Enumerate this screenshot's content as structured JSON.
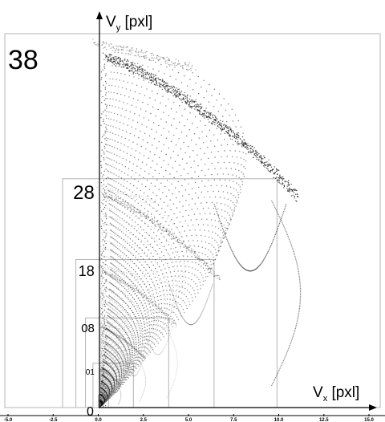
{
  "chart_data": {
    "type": "scatter",
    "title": "",
    "xlabel": {
      "main": "V",
      "sub": "x",
      "unit": " [pxl]"
    },
    "ylabel": {
      "main": "V",
      "sub": "y",
      "unit": " [pxl]"
    },
    "xlim": [
      -5.0,
      15.0
    ],
    "x_ticks": [
      "-5.0",
      "-2.5",
      "0.0",
      "2.5",
      "5.0",
      "7.5",
      "10.0",
      "12.5",
      "15.0"
    ],
    "grid": false,
    "legend": "none",
    "panels": [
      {
        "label": "38",
        "scale": 1.0,
        "darkness": 0.9
      },
      {
        "label": "28",
        "scale": 0.607,
        "darkness": 0.55
      },
      {
        "label": "18",
        "scale": 0.388,
        "darkness": 0.4
      },
      {
        "label": "08",
        "scale": 0.23,
        "darkness": 0.35
      },
      {
        "label": "01",
        "scale": 0.107,
        "darkness": 0.3
      },
      {
        "label": "0",
        "scale": 0.02,
        "darkness": 0.3
      }
    ],
    "point_color": "#000000",
    "box_color": "#b4b4b4"
  }
}
